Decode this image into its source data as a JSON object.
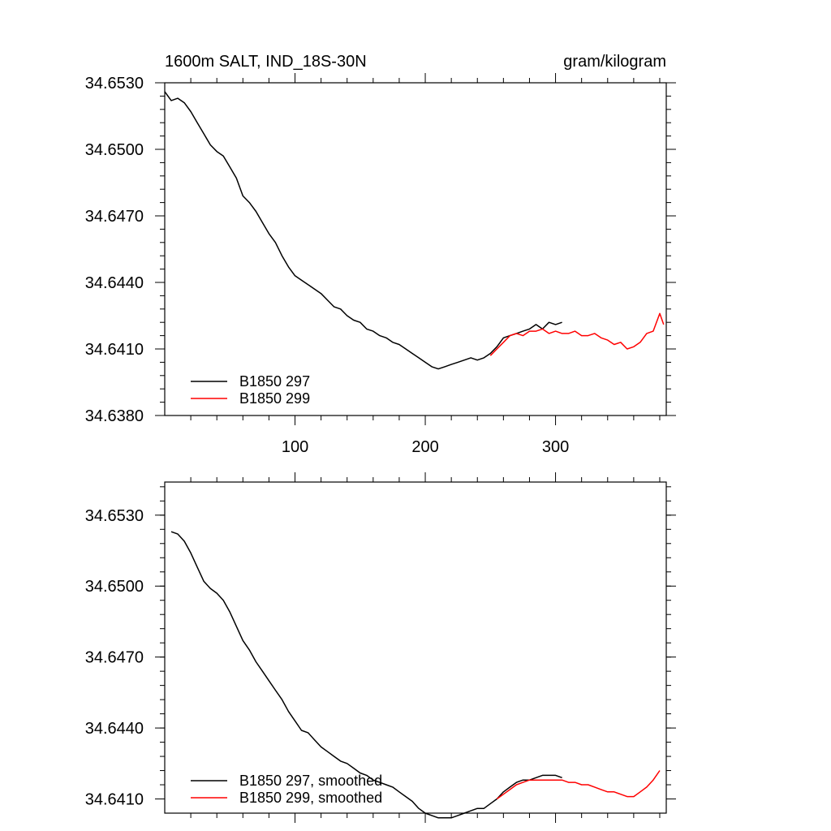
{
  "chart_data": [
    {
      "type": "line",
      "title": "1600m SALT, IND_18S-30N",
      "units": "gram/kilogram",
      "xlim": [
        0,
        385
      ],
      "ylim": [
        34.638,
        34.653
      ],
      "xticks": [
        100,
        200,
        300
      ],
      "xtick_labels": [
        "100",
        "200",
        "300"
      ],
      "yticks": [
        34.638,
        34.641,
        34.644,
        34.647,
        34.65,
        34.653
      ],
      "ytick_labels": [
        "34.6380",
        "34.6410",
        "34.6440",
        "34.6470",
        "34.6500",
        "34.6530"
      ],
      "legend_position": "bottom-left",
      "series": [
        {
          "name": "B1850 297",
          "color": "#000000",
          "x": [
            0,
            5,
            10,
            15,
            20,
            25,
            30,
            35,
            40,
            45,
            50,
            55,
            60,
            65,
            70,
            75,
            80,
            85,
            90,
            95,
            100,
            105,
            110,
            115,
            120,
            125,
            130,
            135,
            140,
            145,
            150,
            155,
            160,
            165,
            170,
            175,
            180,
            185,
            190,
            195,
            200,
            205,
            210,
            215,
            220,
            225,
            230,
            235,
            240,
            245,
            250,
            255,
            260,
            265,
            270,
            275,
            280,
            285,
            290,
            295,
            300,
            305
          ],
          "y": [
            34.6526,
            34.6522,
            34.6523,
            34.6521,
            34.6517,
            34.6512,
            34.6507,
            34.6502,
            34.6499,
            34.6497,
            34.6492,
            34.6487,
            34.6479,
            34.6476,
            34.6472,
            34.6467,
            34.6462,
            34.6458,
            34.6452,
            34.6447,
            34.6443,
            34.6441,
            34.6439,
            34.6437,
            34.6435,
            34.6432,
            34.6429,
            34.6428,
            34.6425,
            34.6423,
            34.6422,
            34.6419,
            34.6418,
            34.6416,
            34.6415,
            34.6413,
            34.6412,
            34.641,
            34.6408,
            34.6406,
            34.6404,
            34.6402,
            34.6401,
            34.6402,
            34.6403,
            34.6404,
            34.6405,
            34.6406,
            34.6405,
            34.6406,
            34.6408,
            34.6411,
            34.6415,
            34.6416,
            34.6417,
            34.6418,
            34.6419,
            34.6421,
            34.6419,
            34.6422,
            34.6421,
            34.6422
          ]
        },
        {
          "name": "B1850 299",
          "color": "#ff0000",
          "x": [
            250,
            255,
            260,
            265,
            270,
            275,
            280,
            285,
            290,
            295,
            300,
            305,
            310,
            315,
            320,
            325,
            330,
            335,
            340,
            345,
            350,
            355,
            360,
            365,
            370,
            375,
            380,
            383
          ],
          "y": [
            34.6407,
            34.641,
            34.6413,
            34.6416,
            34.6417,
            34.6416,
            34.6418,
            34.6418,
            34.6419,
            34.6417,
            34.6418,
            34.6417,
            34.6417,
            34.6418,
            34.6416,
            34.6416,
            34.6417,
            34.6415,
            34.6414,
            34.6412,
            34.6413,
            34.641,
            34.6411,
            34.6413,
            34.6417,
            34.6418,
            34.6426,
            34.6421
          ]
        }
      ]
    },
    {
      "type": "line",
      "title": "",
      "xlim": [
        0,
        385
      ],
      "ylim": [
        34.6404,
        34.6544
      ],
      "xticks": [
        100,
        200,
        300
      ],
      "xtick_labels": [],
      "yticks": [
        34.641,
        34.644,
        34.647,
        34.65,
        34.653
      ],
      "ytick_labels": [
        "34.6410",
        "34.6440",
        "34.6470",
        "34.6500",
        "34.6530"
      ],
      "legend_position": "bottom-left",
      "series": [
        {
          "name": "B1850 297, smoothed",
          "color": "#000000",
          "x": [
            5,
            10,
            15,
            20,
            25,
            30,
            35,
            40,
            45,
            50,
            55,
            60,
            65,
            70,
            75,
            80,
            85,
            90,
            95,
            100,
            105,
            110,
            115,
            120,
            125,
            130,
            135,
            140,
            145,
            150,
            155,
            160,
            165,
            170,
            175,
            180,
            185,
            190,
            195,
            200,
            205,
            210,
            215,
            220,
            225,
            230,
            235,
            240,
            245,
            250,
            255,
            260,
            265,
            270,
            275,
            280,
            285,
            290,
            295,
            300,
            305
          ],
          "y": [
            34.6523,
            34.6522,
            34.6519,
            34.6514,
            34.6508,
            34.6502,
            34.6499,
            34.6497,
            34.6494,
            34.6489,
            34.6483,
            34.6477,
            34.6473,
            34.6468,
            34.6464,
            34.646,
            34.6456,
            34.6452,
            34.6447,
            34.6443,
            34.6439,
            34.6438,
            34.6435,
            34.6432,
            34.643,
            34.6428,
            34.6426,
            34.6425,
            34.6423,
            34.6421,
            34.642,
            34.6418,
            34.6417,
            34.6416,
            34.6415,
            34.6413,
            34.6411,
            34.6409,
            34.6406,
            34.6404,
            34.6403,
            34.6402,
            34.6402,
            34.6402,
            34.6403,
            34.6404,
            34.6405,
            34.6406,
            34.6406,
            34.6408,
            34.641,
            34.6413,
            34.6415,
            34.6417,
            34.6418,
            34.6418,
            34.6419,
            34.642,
            34.642,
            34.642,
            34.6419
          ]
        },
        {
          "name": "B1850 299, smoothed",
          "color": "#ff0000",
          "x": [
            255,
            260,
            265,
            270,
            275,
            280,
            285,
            290,
            295,
            300,
            305,
            310,
            315,
            320,
            325,
            330,
            335,
            340,
            345,
            350,
            355,
            360,
            365,
            370,
            375,
            380
          ],
          "y": [
            34.641,
            34.6412,
            34.6414,
            34.6416,
            34.6417,
            34.6418,
            34.6418,
            34.6418,
            34.6418,
            34.6418,
            34.6418,
            34.6417,
            34.6417,
            34.6416,
            34.6416,
            34.6415,
            34.6414,
            34.6413,
            34.6413,
            34.6412,
            34.6411,
            34.6411,
            34.6413,
            34.6415,
            34.6418,
            34.6422
          ]
        }
      ]
    }
  ]
}
